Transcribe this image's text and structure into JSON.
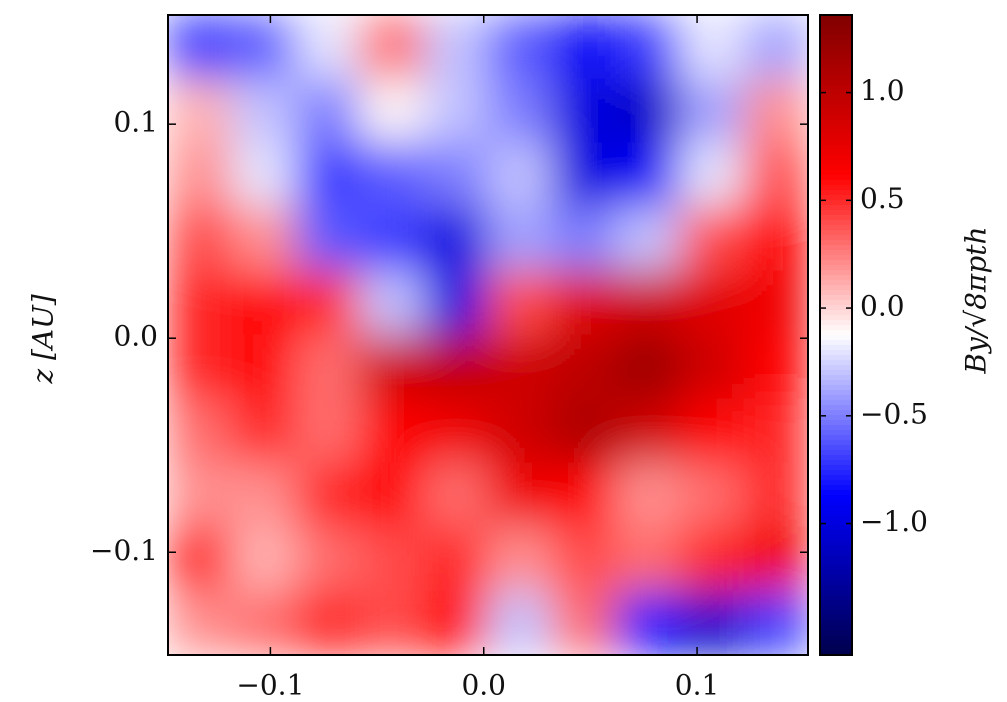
{
  "chart_data": {
    "type": "heatmap",
    "xlim": [
      -0.148,
      0.152
    ],
    "xticks": [
      {
        "value": -0.1,
        "label": "−0.1"
      },
      {
        "value": 0.0,
        "label": "0.0"
      },
      0.1
    ],
    "ylim": [
      -0.148,
      0.151
    ],
    "yticks": [
      {
        "value": -0.1,
        "label": "−0.1"
      },
      {
        "value": 0.0,
        "label": "0.0"
      },
      0.1
    ],
    "ylabel": "z [AU]",
    "colormap": "seismic",
    "clim": [
      -1.61,
      1.36
    ],
    "cticks": [
      {
        "value": -1.0,
        "label": "−1.0"
      },
      {
        "value": -0.5,
        "label": "−0.5"
      },
      {
        "value": 0.0,
        "label": "0.0"
      },
      0.5,
      {
        "value": 1.0,
        "label": "1.0"
      }
    ],
    "clabel": "By/√8πpth",
    "z": [
      [
        -0.7,
        -0.6,
        -0.2,
        0.3,
        -0.3,
        -0.6,
        -0.9,
        -0.7,
        -0.2,
        -0.4
      ],
      [
        0.1,
        -0.3,
        -0.5,
        -0.1,
        -0.3,
        -0.5,
        -1.0,
        -1.1,
        -0.4,
        0.2
      ],
      [
        0.2,
        -0.2,
        -0.7,
        -0.6,
        -0.5,
        -0.3,
        -1.0,
        -0.9,
        -0.2,
        0.4
      ],
      [
        0.4,
        0.2,
        -0.6,
        -0.7,
        -1.0,
        -0.4,
        -0.5,
        -0.3,
        0.4,
        0.6
      ],
      [
        0.5,
        0.6,
        0.5,
        -0.3,
        -1.0,
        0.4,
        0.8,
        0.9,
        0.8,
        0.7
      ],
      [
        0.5,
        0.6,
        0.3,
        0.9,
        1.0,
        0.9,
        1.0,
        1.2,
        0.9,
        0.6
      ],
      [
        0.3,
        0.5,
        0.3,
        0.6,
        0.7,
        0.9,
        1.1,
        0.9,
        0.6,
        0.5
      ],
      [
        0.2,
        0.2,
        0.5,
        0.6,
        0.3,
        0.7,
        0.6,
        0.2,
        0.3,
        0.5
      ],
      [
        0.5,
        0.1,
        0.3,
        0.4,
        0.5,
        0.2,
        0.4,
        0.3,
        0.5,
        0.7
      ],
      [
        0.2,
        0.3,
        0.5,
        0.4,
        0.6,
        -0.3,
        0.3,
        -0.8,
        -1.1,
        -0.7
      ]
    ]
  }
}
